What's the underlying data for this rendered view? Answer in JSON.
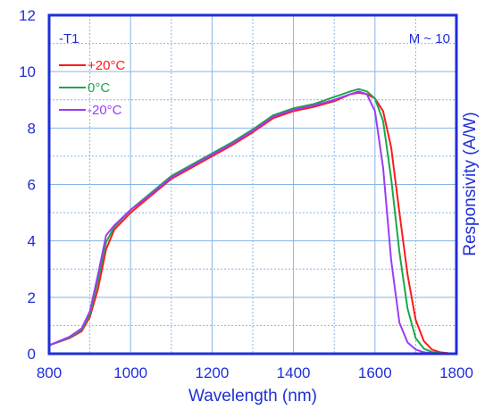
{
  "chart_data": {
    "type": "line",
    "xlabel": "Wavelength (nm)",
    "ylabel": "Responsivity (A/W)",
    "xlim": [
      800,
      1800
    ],
    "ylim": [
      0,
      12
    ],
    "xticks": [
      800,
      1000,
      1200,
      1400,
      1600,
      1800
    ],
    "yticks": [
      0,
      2,
      4,
      6,
      8,
      10,
      12
    ],
    "grid": true,
    "legend_placement": "top-left",
    "annotations": {
      "top_left": "-T1",
      "top_right": "M ~ 10"
    },
    "series": [
      {
        "name": "+20°C",
        "color": "#ff1a1a",
        "x": [
          800,
          850,
          880,
          900,
          920,
          940,
          960,
          1000,
          1050,
          1100,
          1150,
          1200,
          1250,
          1300,
          1350,
          1400,
          1450,
          1500,
          1540,
          1560,
          1580,
          1600,
          1620,
          1640,
          1660,
          1680,
          1700,
          1720,
          1740,
          1760,
          1780,
          1800
        ],
        "y": [
          0.3,
          0.55,
          0.8,
          1.3,
          2.3,
          3.7,
          4.4,
          5.0,
          5.6,
          6.2,
          6.6,
          7.0,
          7.4,
          7.85,
          8.35,
          8.6,
          8.75,
          8.95,
          9.2,
          9.25,
          9.2,
          9.05,
          8.6,
          7.3,
          5.0,
          2.8,
          1.2,
          0.45,
          0.15,
          0.05,
          0.02,
          0.0
        ]
      },
      {
        "name": "0°C",
        "color": "#1ea64b",
        "x": [
          800,
          850,
          880,
          900,
          920,
          940,
          960,
          1000,
          1050,
          1100,
          1150,
          1200,
          1250,
          1300,
          1350,
          1400,
          1450,
          1500,
          1540,
          1560,
          1580,
          1600,
          1620,
          1640,
          1660,
          1680,
          1700,
          1720,
          1740,
          1760,
          1780,
          1800
        ],
        "y": [
          0.3,
          0.57,
          0.85,
          1.4,
          2.6,
          3.95,
          4.5,
          5.1,
          5.7,
          6.3,
          6.7,
          7.1,
          7.5,
          7.95,
          8.45,
          8.7,
          8.85,
          9.1,
          9.3,
          9.38,
          9.3,
          9.05,
          8.25,
          6.2,
          3.6,
          1.6,
          0.55,
          0.18,
          0.06,
          0.02,
          0.0,
          0.0
        ]
      },
      {
        "name": "-20°C",
        "color": "#9b3df5",
        "x": [
          800,
          850,
          880,
          900,
          920,
          940,
          960,
          1000,
          1050,
          1100,
          1150,
          1200,
          1250,
          1300,
          1350,
          1400,
          1450,
          1500,
          1540,
          1560,
          1580,
          1600,
          1620,
          1640,
          1660,
          1680,
          1700,
          1720,
          1740,
          1760,
          1780,
          1800
        ],
        "y": [
          0.3,
          0.6,
          0.9,
          1.5,
          2.8,
          4.2,
          4.55,
          5.1,
          5.65,
          6.25,
          6.65,
          7.05,
          7.45,
          7.9,
          8.4,
          8.65,
          8.8,
          9.0,
          9.2,
          9.3,
          9.2,
          8.6,
          6.6,
          3.3,
          1.1,
          0.4,
          0.15,
          0.05,
          0.02,
          0.0,
          0.0,
          0.0
        ]
      }
    ]
  }
}
